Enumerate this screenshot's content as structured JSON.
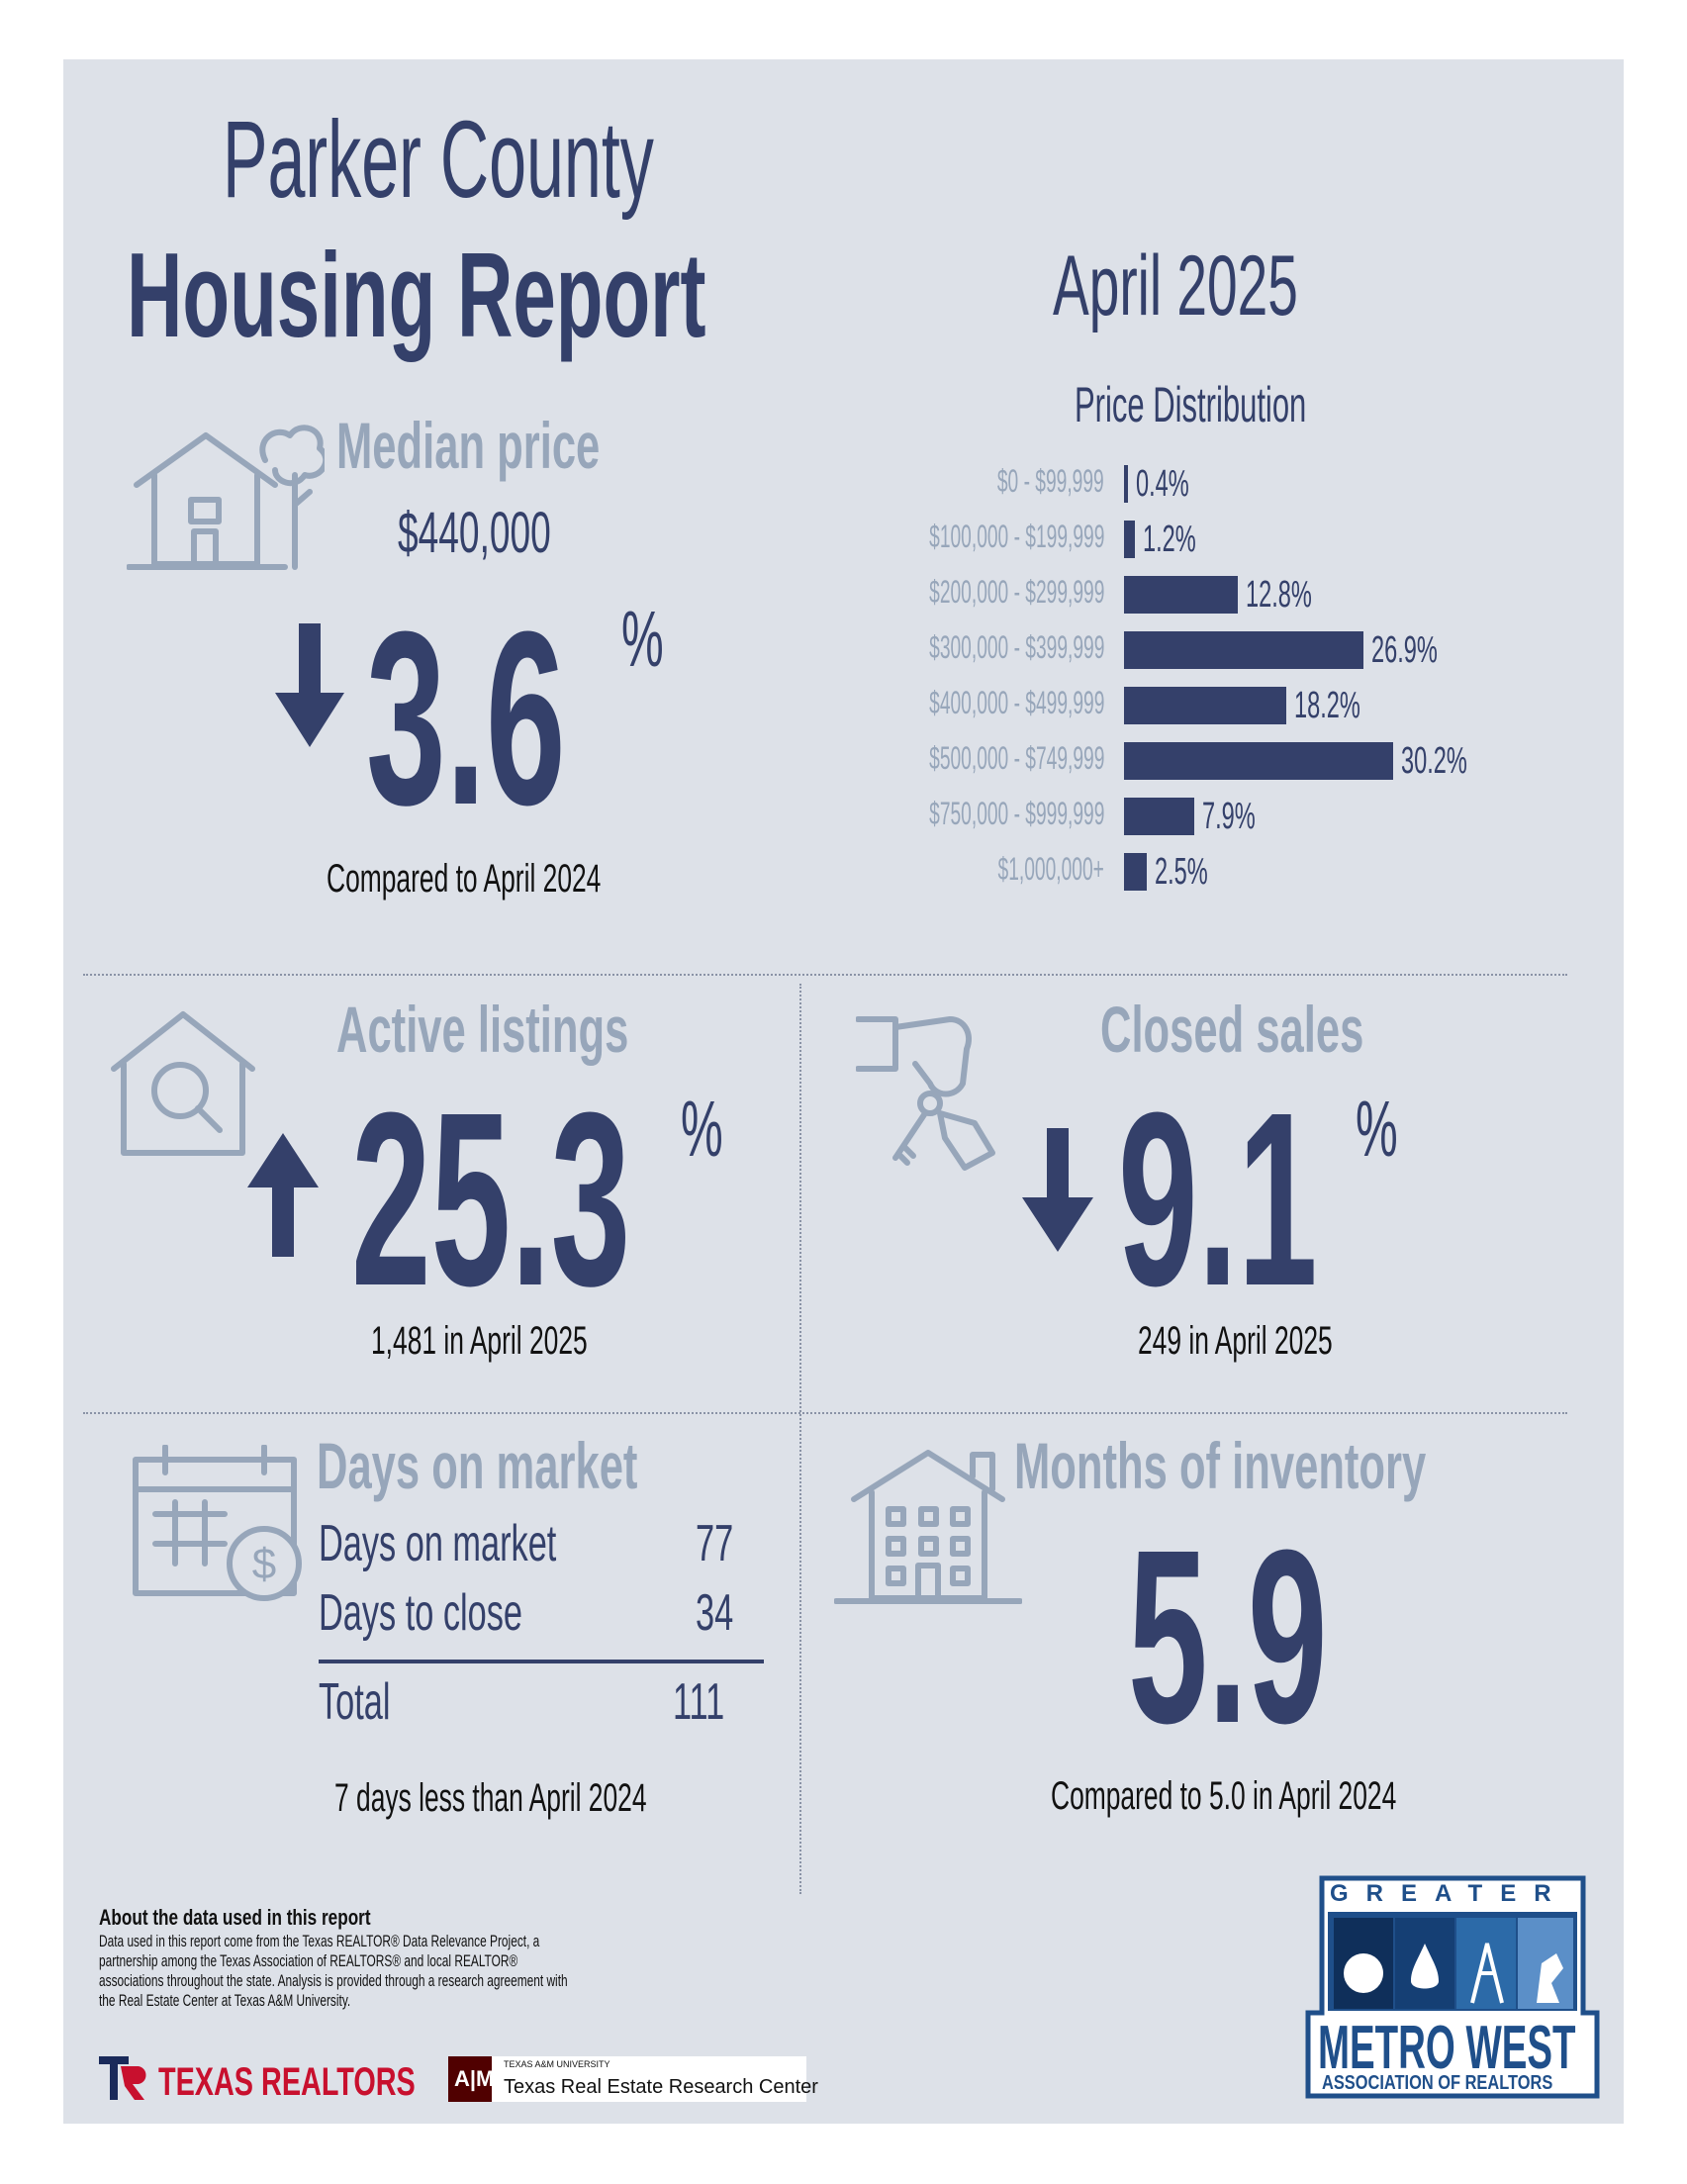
{
  "header": {
    "county": "Parker County",
    "report": "Housing Report",
    "period": "April 2025"
  },
  "median_price": {
    "label": "Median price",
    "value": "$440,000",
    "change": "3.6",
    "unit": "%",
    "direction": "down",
    "caption": "Compared to April 2024"
  },
  "price_distribution": {
    "title": "Price Distribution",
    "chart_data": {
      "type": "bar",
      "orientation": "horizontal",
      "title": "Price Distribution",
      "categories": [
        "$0 - $99,999",
        "$100,000 - $199,999",
        "$200,000 - $299,999",
        "$300,000 - $399,999",
        "$400,000 - $499,999",
        "$500,000 - $749,999",
        "$750,000 - $999,999",
        "$1,000,000+"
      ],
      "values": [
        0.4,
        1.2,
        12.8,
        26.9,
        18.2,
        30.2,
        7.9,
        2.5
      ],
      "value_labels": [
        "0.4%",
        "1.2%",
        "12.8%",
        "26.9%",
        "18.2%",
        "30.2%",
        "7.9%",
        "2.5%"
      ],
      "xlim": [
        0,
        30.2
      ]
    }
  },
  "active_listings": {
    "label": "Active listings",
    "change": "25.3",
    "unit": "%",
    "direction": "up",
    "caption": "1,481 in April 2025"
  },
  "closed_sales": {
    "label": "Closed sales",
    "change": "9.1",
    "unit": "%",
    "direction": "down",
    "caption": "249 in April 2025"
  },
  "days_on_market": {
    "label": "Days on market",
    "rows": [
      {
        "name": "Days on market",
        "value": "77"
      },
      {
        "name": "Days to close",
        "value": "34"
      }
    ],
    "total_label": "Total",
    "total_value": "111",
    "caption": "7 days less than April 2024"
  },
  "months_inventory": {
    "label": "Months of inventory",
    "value": "5.9",
    "caption": "Compared to 5.0 in April 2024"
  },
  "footer": {
    "about_title": "About the data used in this report",
    "about_text": "Data used in this report come from the Texas REALTOR® Data Relevance Project, a partnership among the Texas Association of REALTORS® and local REALTOR® associations throughout the state. Analysis is provided through a research agreement with the Real Estate Center at Texas A&M University.",
    "logo_tr": "TEXAS REALTORS",
    "logo_tamu_small": "TEXAS A&M UNIVERSITY",
    "logo_tamu": "Texas Real Estate Research Center",
    "logo_tamu_mark": "A|M",
    "metro_top": "GREATER",
    "metro_main": "METRO WEST",
    "metro_sub": "ASSOCIATION OF REALTORS"
  },
  "colors": {
    "navy": "#34406a",
    "light": "#97a6ba",
    "background": "#dde1e8",
    "tr_red": "#c8102e",
    "tamu_maroon": "#500000"
  }
}
